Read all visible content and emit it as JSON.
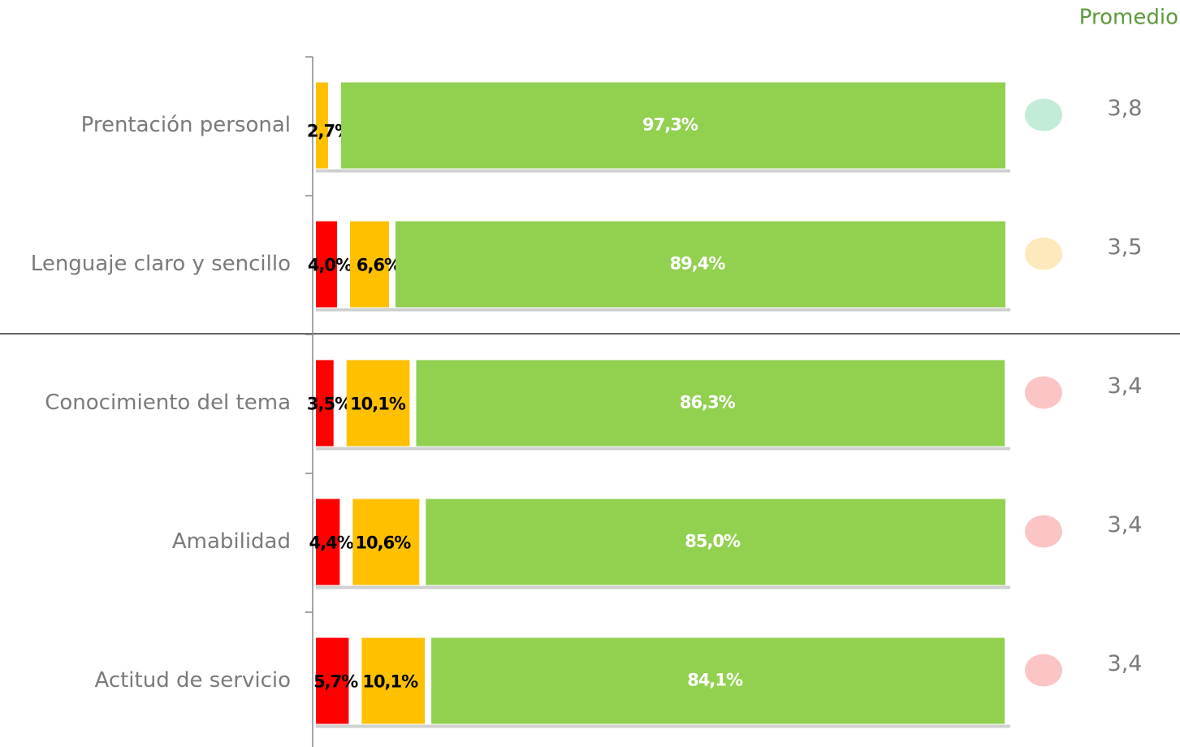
{
  "chart_data": {
    "type": "stacked_barh",
    "categories": [
      "Prentación personal",
      "Lenguaje claro y sencillo",
      "Conocimiento del tema",
      "Amabilidad",
      "Actitud de servicio"
    ],
    "xlim": [
      0,
      100
    ],
    "series": [
      {
        "color": "#ff0000",
        "label_color": "#000000",
        "values": [
          null,
          4.0,
          3.5,
          4.4,
          5.7
        ],
        "value_labels": [
          null,
          "4,0%",
          "3,5%",
          "4,4%",
          "5,7%"
        ]
      },
      {
        "color": "#ffc000",
        "label_color": "#000000",
        "values": [
          2.7,
          6.6,
          10.1,
          10.6,
          10.1
        ],
        "value_labels": [
          "2,7%",
          "6,6%",
          "10,1%",
          "10,6%",
          "10,1%"
        ]
      },
      {
        "color": "#92d050",
        "label_color": "#ffffff",
        "values": [
          97.3,
          89.4,
          86.3,
          85.0,
          84.1
        ],
        "value_labels": [
          "97,3%",
          "89,4%",
          "86,3%",
          "85,0%",
          "84,1%"
        ]
      }
    ],
    "averages": {
      "title": "Promedio",
      "values": [
        3.8,
        3.5,
        3.4,
        3.4,
        3.4
      ],
      "value_labels": [
        "3,8",
        "3,5",
        "3,4",
        "3,4",
        "3,4"
      ],
      "colors": [
        "#c3ecd8",
        "#fde9bb",
        "#fcc5c5",
        "#fcc5c5",
        "#fcc5c5"
      ]
    }
  }
}
